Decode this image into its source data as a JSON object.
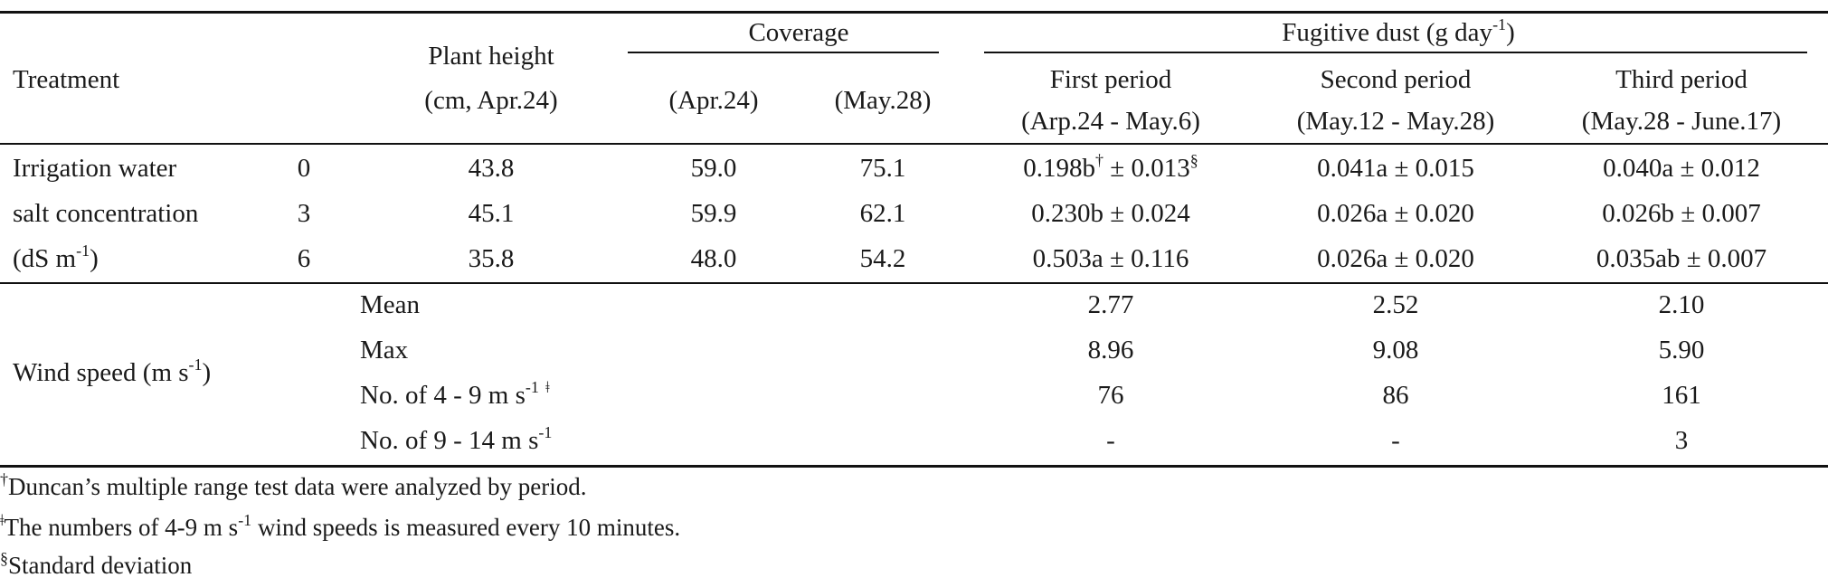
{
  "header": {
    "treatment": "Treatment",
    "plant_height_line1": "Plant height",
    "plant_height_line2": "(cm, Apr.24)",
    "coverage": "Coverage",
    "coverage_apr": "(Apr.24)",
    "coverage_may": "(May.28)",
    "dust_label": "Fugitive dust (g day",
    "dust_exp": "-1",
    "dust_close": ")",
    "p1_line1": "First period",
    "p1_line2": "(Arp.24 - May.6)",
    "p2_line1": "Second period",
    "p2_line2": "(May.12 - May.28)",
    "p3_line1": "Third period",
    "p3_line2": "(May.28 - June.17)"
  },
  "treatment_label": {
    "line1": "Irrigation water",
    "line2": "salt concentration",
    "line3_pre": "(dS m",
    "line3_exp": "-1",
    "line3_post": ")"
  },
  "rows": [
    {
      "level": "0",
      "height": "43.8",
      "cov_apr": "59.0",
      "cov_may": "75.1",
      "p1_pre": "0.198b",
      "p1_sup1": "†",
      "p1_mid": " ± 0.013",
      "p1_sup2": "§",
      "p2": "0.041a ± 0.015",
      "p3": "0.040a ± 0.012"
    },
    {
      "level": "3",
      "height": "45.1",
      "cov_apr": "59.9",
      "cov_may": "62.1",
      "p1_pre": "0.230b ± 0.024",
      "p2": "0.026a ± 0.020",
      "p3": "0.026b ± 0.007"
    },
    {
      "level": "6",
      "height": "35.8",
      "cov_apr": "48.0",
      "cov_may": "54.2",
      "p1_pre": "0.503a ± 0.116",
      "p2": "0.026a ± 0.020",
      "p3": "0.035ab ± 0.007"
    }
  ],
  "wind": {
    "label_pre": "Wind speed (m s",
    "label_exp": "-1",
    "label_post": ")",
    "rows": [
      {
        "label": "Mean",
        "p1": "2.77",
        "p2": "2.52",
        "p3": "2.10"
      },
      {
        "label": "Max",
        "p1": "8.96",
        "p2": "9.08",
        "p3": "5.90"
      },
      {
        "label_pre": "No. of 4 - 9 m s",
        "label_exp": "-1",
        "label_mark": "ǂ",
        "p1": "76",
        "p2": "86",
        "p3": "161"
      },
      {
        "label_pre": "No. of 9 - 14 m s",
        "label_exp": "-1",
        "p1": "-",
        "p2": "-",
        "p3": "3"
      }
    ]
  },
  "footnotes": {
    "f1_mark": "†",
    "f1_text": "Duncan’s multiple range test data were analyzed by period.",
    "f2_mark": "ǂ",
    "f2_pre": "The numbers of 4-9 m s",
    "f2_exp": "-1",
    "f2_post": " wind speeds is measured every 10 minutes.",
    "f3_mark": "§",
    "f3_text": "Standard deviation"
  }
}
